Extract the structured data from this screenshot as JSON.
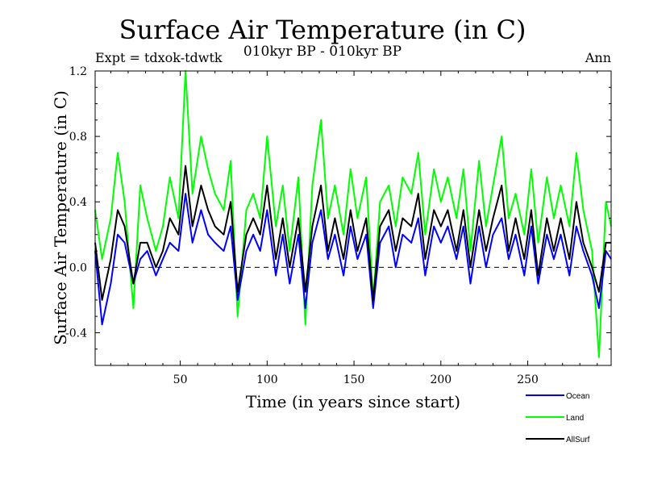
{
  "figure": {
    "title": "Surface Air Temperature (in C)",
    "subtitle": "010kyr BP - 010kyr BP",
    "experiment_label": "Expt = tdxok-tdwtk",
    "season_label": "Ann"
  },
  "chart_data": {
    "type": "line",
    "title": "Surface Air Temperature (in C)",
    "subtitle": "010kyr BP - 010kyr BP",
    "xlabel": "Time (in years since start)",
    "ylabel": "Surface Air Temperature (in C)",
    "xlim": [
      1,
      298
    ],
    "ylim": [
      -0.6,
      1.2
    ],
    "xticks": [
      50,
      100,
      150,
      200,
      250
    ],
    "yticks": [
      -0.4,
      0.0,
      0.4,
      0.8,
      1.2
    ],
    "ytick_labels": [
      "-0.4",
      "0.0",
      "0.4",
      "0.8",
      "1.2"
    ],
    "grid": false,
    "zero_line": "dashed",
    "legend_position": "bottom-right, below plot",
    "series": [
      {
        "name": "Land",
        "color": "#00ff00",
        "x": [
          1,
          5,
          10,
          14,
          18,
          23,
          27,
          31,
          36,
          40,
          44,
          49,
          53,
          57,
          62,
          66,
          70,
          75,
          79,
          83,
          88,
          92,
          96,
          100,
          105,
          109,
          113,
          118,
          122,
          126,
          131,
          135,
          139,
          144,
          148,
          152,
          157,
          161,
          165,
          170,
          174,
          178,
          183,
          187,
          191,
          196,
          200,
          204,
          209,
          213,
          217,
          222,
          226,
          230,
          235,
          239,
          243,
          248,
          252,
          256,
          261,
          265,
          269,
          274,
          278,
          282,
          287,
          291,
          295,
          298
        ],
        "values": [
          0.35,
          0.05,
          0.3,
          0.7,
          0.4,
          -0.25,
          0.5,
          0.3,
          0.1,
          0.25,
          0.55,
          0.3,
          1.2,
          0.45,
          0.8,
          0.6,
          0.45,
          0.35,
          0.65,
          -0.3,
          0.35,
          0.45,
          0.3,
          0.8,
          0.25,
          0.5,
          0.1,
          0.55,
          -0.35,
          0.5,
          0.9,
          0.3,
          0.5,
          0.2,
          0.6,
          0.3,
          0.55,
          -0.2,
          0.4,
          0.5,
          0.25,
          0.55,
          0.45,
          0.7,
          0.2,
          0.6,
          0.4,
          0.55,
          0.3,
          0.6,
          0.1,
          0.65,
          0.25,
          0.5,
          0.8,
          0.3,
          0.45,
          0.2,
          0.6,
          0.15,
          0.55,
          0.3,
          0.5,
          0.25,
          0.7,
          0.35,
          0.1,
          -0.55,
          0.4,
          0.25
        ]
      },
      {
        "name": "Ocean",
        "color": "#0000ff",
        "x": [
          1,
          5,
          10,
          14,
          18,
          23,
          27,
          31,
          36,
          40,
          44,
          49,
          53,
          57,
          62,
          66,
          70,
          75,
          79,
          83,
          88,
          92,
          96,
          100,
          105,
          109,
          113,
          118,
          122,
          126,
          131,
          135,
          139,
          144,
          148,
          152,
          157,
          161,
          165,
          170,
          174,
          178,
          183,
          187,
          191,
          196,
          200,
          204,
          209,
          213,
          217,
          222,
          226,
          230,
          235,
          239,
          243,
          248,
          252,
          256,
          261,
          265,
          269,
          274,
          278,
          282,
          287,
          291,
          295,
          298
        ],
        "values": [
          0.1,
          -0.35,
          -0.1,
          0.2,
          0.15,
          -0.1,
          0.05,
          0.1,
          -0.05,
          0.05,
          0.15,
          0.1,
          0.45,
          0.15,
          0.35,
          0.2,
          0.15,
          0.1,
          0.25,
          -0.2,
          0.1,
          0.2,
          0.1,
          0.35,
          -0.05,
          0.2,
          -0.1,
          0.2,
          -0.25,
          0.15,
          0.35,
          0.05,
          0.2,
          -0.05,
          0.25,
          0.05,
          0.2,
          -0.25,
          0.15,
          0.25,
          0.0,
          0.2,
          0.15,
          0.3,
          -0.05,
          0.25,
          0.15,
          0.25,
          0.05,
          0.25,
          -0.1,
          0.25,
          0.0,
          0.2,
          0.3,
          0.05,
          0.2,
          -0.05,
          0.25,
          -0.1,
          0.2,
          0.05,
          0.2,
          -0.05,
          0.25,
          0.1,
          -0.05,
          -0.25,
          0.1,
          0.05
        ]
      },
      {
        "name": "AllSurf",
        "color": "#000000",
        "x": [
          1,
          5,
          10,
          14,
          18,
          23,
          27,
          31,
          36,
          40,
          44,
          49,
          53,
          57,
          62,
          66,
          70,
          75,
          79,
          83,
          88,
          92,
          96,
          100,
          105,
          109,
          113,
          118,
          122,
          126,
          131,
          135,
          139,
          144,
          148,
          152,
          157,
          161,
          165,
          170,
          174,
          178,
          183,
          187,
          191,
          196,
          200,
          204,
          209,
          213,
          217,
          222,
          226,
          230,
          235,
          239,
          243,
          248,
          252,
          256,
          261,
          265,
          269,
          274,
          278,
          282,
          287,
          291,
          295,
          298
        ],
        "values": [
          0.15,
          -0.2,
          0.05,
          0.35,
          0.25,
          -0.1,
          0.15,
          0.15,
          0.0,
          0.1,
          0.3,
          0.2,
          0.62,
          0.25,
          0.5,
          0.35,
          0.25,
          0.2,
          0.4,
          -0.15,
          0.2,
          0.3,
          0.2,
          0.5,
          0.05,
          0.3,
          0.0,
          0.3,
          -0.15,
          0.25,
          0.5,
          0.1,
          0.3,
          0.05,
          0.35,
          0.1,
          0.3,
          -0.2,
          0.25,
          0.35,
          0.1,
          0.3,
          0.25,
          0.45,
          0.05,
          0.35,
          0.25,
          0.35,
          0.1,
          0.35,
          0.0,
          0.35,
          0.1,
          0.3,
          0.5,
          0.1,
          0.3,
          0.05,
          0.35,
          -0.05,
          0.3,
          0.1,
          0.3,
          0.05,
          0.4,
          0.15,
          0.0,
          -0.15,
          0.15,
          0.15
        ]
      }
    ],
    "legend_order": [
      "Ocean",
      "Land",
      "AllSurf"
    ]
  }
}
